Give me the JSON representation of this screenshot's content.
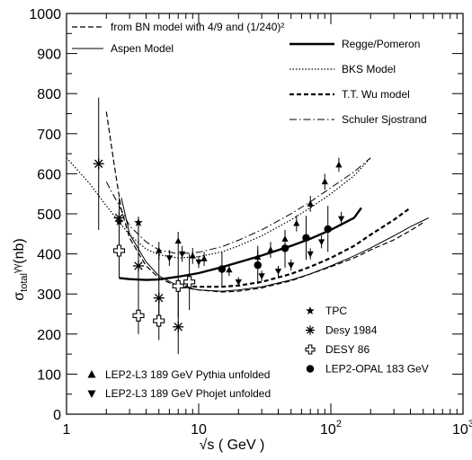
{
  "chart_data": {
    "type": "scatter",
    "x_scale": "log",
    "xlim": [
      1,
      1000
    ],
    "ylim": [
      0,
      1000
    ],
    "x_ticks": [
      {
        "value": 1,
        "base": "1",
        "exp": ""
      },
      {
        "value": 10,
        "base": "10",
        "exp": ""
      },
      {
        "value": 100,
        "base": "10",
        "exp": "2"
      },
      {
        "value": 1000,
        "base": "10",
        "exp": "3"
      }
    ],
    "y_ticks": [
      0,
      100,
      200,
      300,
      400,
      500,
      600,
      700,
      800,
      900,
      1000
    ],
    "xlabel": "√s ( GeV )",
    "ylabel_main": "σ",
    "ylabel_sub": "total",
    "ylabel_rest": "ᵞᵞ(nb)",
    "legend_left": [
      {
        "label": "from BN model with 4/9 and (1/240)²",
        "dash": "6,3",
        "width": 1.2
      },
      {
        "label": "Aspen Model",
        "dash": "",
        "width": 1
      }
    ],
    "legend_right": [
      {
        "label": "Regge/Pomeron",
        "dash": "",
        "width": 2.4
      },
      {
        "label": "BKS Model",
        "dash": "1.5,2",
        "width": 1.2
      },
      {
        "label": "T.T. Wu model",
        "dash": "5,3",
        "width": 2.2
      },
      {
        "label": "Schuler Sjostrand",
        "dash": "8,3,1.5,3",
        "width": 1
      }
    ],
    "legend_markers_right": [
      {
        "label": "TPC",
        "marker": "star"
      },
      {
        "label": "Desy 1984",
        "marker": "asterisk"
      },
      {
        "label": "DESY 86",
        "marker": "open-cross"
      },
      {
        "label": "LEP2-OPAL 183 GeV",
        "marker": "circle"
      }
    ],
    "legend_markers_left": [
      {
        "label": "LEP2-L3 189 GeV Pythia unfolded",
        "marker": "triangle-up"
      },
      {
        "label": "LEP2-L3 189 GeV Phojet unfolded",
        "marker": "triangle-down"
      }
    ],
    "curves": [
      {
        "name": "Regge/Pomeron",
        "dash": "",
        "width": 2.4,
        "x": [
          2.5,
          3,
          4,
          5,
          7,
          10,
          15,
          20,
          30,
          50,
          70,
          100,
          150,
          170
        ],
        "y": [
          340,
          337,
          335,
          336,
          343,
          352,
          367,
          379,
          396,
          420,
          438,
          460,
          490,
          515
        ]
      },
      {
        "name": "BKS Model",
        "dash": "1.5,2",
        "width": 1.2,
        "x": [
          1,
          1.5,
          2,
          2.5,
          3,
          4,
          5,
          7,
          10,
          15,
          20,
          30,
          50,
          70,
          100,
          150,
          200
        ],
        "y": [
          640,
          575,
          520,
          480,
          448,
          412,
          398,
          390,
          393,
          405,
          420,
          445,
          485,
          515,
          550,
          595,
          640
        ]
      },
      {
        "name": "T.T. Wu model",
        "dash": "5,3",
        "width": 2.2,
        "x": [
          7,
          10,
          15,
          20,
          30,
          50,
          70,
          100,
          150,
          200,
          300,
          400
        ],
        "y": [
          320,
          318,
          318,
          321,
          330,
          350,
          368,
          390,
          420,
          448,
          485,
          515
        ]
      },
      {
        "name": "Schuler Sjostrand",
        "dash": "8,3,1.5,3",
        "width": 1,
        "x": [
          2,
          2.5,
          3,
          4,
          5,
          7,
          10,
          15,
          20,
          30,
          50,
          70,
          100,
          150,
          200
        ],
        "y": [
          580,
          520,
          470,
          430,
          410,
          400,
          404,
          418,
          434,
          460,
          500,
          530,
          565,
          605,
          640
        ]
      },
      {
        "name": "from BN model with 4/9 and (1/240)²",
        "dash": "6,3",
        "width": 1.2,
        "x": [
          2,
          2.3,
          2.6,
          3,
          4,
          5,
          7,
          10,
          15,
          20,
          30,
          50,
          70,
          100,
          150,
          200,
          300,
          400,
          500
        ],
        "y": [
          755,
          620,
          510,
          440,
          370,
          340,
          318,
          310,
          305,
          307,
          315,
          333,
          350,
          368,
          390,
          410,
          435,
          458,
          478
        ]
      },
      {
        "name": "Aspen Model",
        "dash": "",
        "width": 1,
        "x": [
          2.6,
          3,
          4,
          5,
          7,
          10,
          15,
          20,
          30,
          50,
          70,
          100,
          150,
          200,
          300,
          400,
          550
        ],
        "y": [
          540,
          450,
          380,
          345,
          320,
          310,
          307,
          310,
          318,
          335,
          350,
          370,
          395,
          415,
          445,
          468,
          490
        ]
      }
    ],
    "series": [
      {
        "name": "TPC",
        "marker": "star",
        "points": [
          {
            "x": 2.5,
            "y": 480,
            "lo": 465,
            "hi": 495
          },
          {
            "x": 3.5,
            "y": 478,
            "lo": 463,
            "hi": 493
          }
        ]
      },
      {
        "name": "Desy 1984",
        "marker": "asterisk",
        "points": [
          {
            "x": 1.75,
            "y": 625,
            "lo": 460,
            "hi": 790
          },
          {
            "x": 2.5,
            "y": 490,
            "lo": 400,
            "hi": 540
          },
          {
            "x": 3.5,
            "y": 370,
            "lo": 300,
            "hi": 480
          },
          {
            "x": 5,
            "y": 290,
            "lo": 220,
            "hi": 400
          },
          {
            "x": 7,
            "y": 218,
            "lo": 150,
            "hi": 320
          }
        ]
      },
      {
        "name": "DESY 86",
        "marker": "open-cross",
        "points": [
          {
            "x": 2.5,
            "y": 408,
            "lo": 340,
            "hi": 480
          },
          {
            "x": 3.5,
            "y": 246,
            "lo": 200,
            "hi": 300
          },
          {
            "x": 5,
            "y": 233,
            "lo": 185,
            "hi": 300
          },
          {
            "x": 7,
            "y": 320,
            "lo": 240,
            "hi": 410
          },
          {
            "x": 8.5,
            "y": 330,
            "lo": 260,
            "hi": 400
          }
        ]
      },
      {
        "name": "LEP2-OPAL 183 GeV",
        "marker": "circle",
        "points": [
          {
            "x": 15,
            "y": 362,
            "lo": 320,
            "hi": 405
          },
          {
            "x": 28,
            "y": 372,
            "lo": 325,
            "hi": 420
          },
          {
            "x": 45,
            "y": 414,
            "lo": 365,
            "hi": 460
          },
          {
            "x": 65,
            "y": 440,
            "lo": 385,
            "hi": 495
          },
          {
            "x": 95,
            "y": 462,
            "lo": 405,
            "hi": 520
          }
        ]
      },
      {
        "name": "LEP2-L3 189 GeV Pythia unfolded",
        "marker": "triangle-up",
        "points": [
          {
            "x": 5,
            "y": 408,
            "lo": 385,
            "hi": 430
          },
          {
            "x": 7,
            "y": 432,
            "lo": 410,
            "hi": 455
          },
          {
            "x": 9,
            "y": 395,
            "lo": 375,
            "hi": 415
          },
          {
            "x": 11,
            "y": 388,
            "lo": 370,
            "hi": 405
          },
          {
            "x": 17,
            "y": 360,
            "lo": 345,
            "hi": 375
          },
          {
            "x": 28,
            "y": 392,
            "lo": 375,
            "hi": 410
          },
          {
            "x": 35,
            "y": 410,
            "lo": 390,
            "hi": 430
          },
          {
            "x": 45,
            "y": 437,
            "lo": 417,
            "hi": 457
          },
          {
            "x": 55,
            "y": 476,
            "lo": 456,
            "hi": 496
          },
          {
            "x": 70,
            "y": 525,
            "lo": 505,
            "hi": 545
          },
          {
            "x": 90,
            "y": 580,
            "lo": 560,
            "hi": 600
          },
          {
            "x": 115,
            "y": 622,
            "lo": 605,
            "hi": 640
          }
        ]
      },
      {
        "name": "LEP2-L3 189 GeV Phojet unfolded",
        "marker": "triangle-down",
        "points": [
          {
            "x": 6,
            "y": 390,
            "lo": 370,
            "hi": 410
          },
          {
            "x": 7.5,
            "y": 400,
            "lo": 380,
            "hi": 420
          },
          {
            "x": 10,
            "y": 380,
            "lo": 365,
            "hi": 395
          },
          {
            "x": 20,
            "y": 330,
            "lo": 318,
            "hi": 342
          },
          {
            "x": 30,
            "y": 345,
            "lo": 332,
            "hi": 358
          },
          {
            "x": 40,
            "y": 357,
            "lo": 344,
            "hi": 370
          },
          {
            "x": 50,
            "y": 372,
            "lo": 358,
            "hi": 386
          },
          {
            "x": 70,
            "y": 400,
            "lo": 386,
            "hi": 414
          },
          {
            "x": 85,
            "y": 430,
            "lo": 414,
            "hi": 446
          },
          {
            "x": 120,
            "y": 488,
            "lo": 470,
            "hi": 505
          }
        ]
      }
    ]
  }
}
